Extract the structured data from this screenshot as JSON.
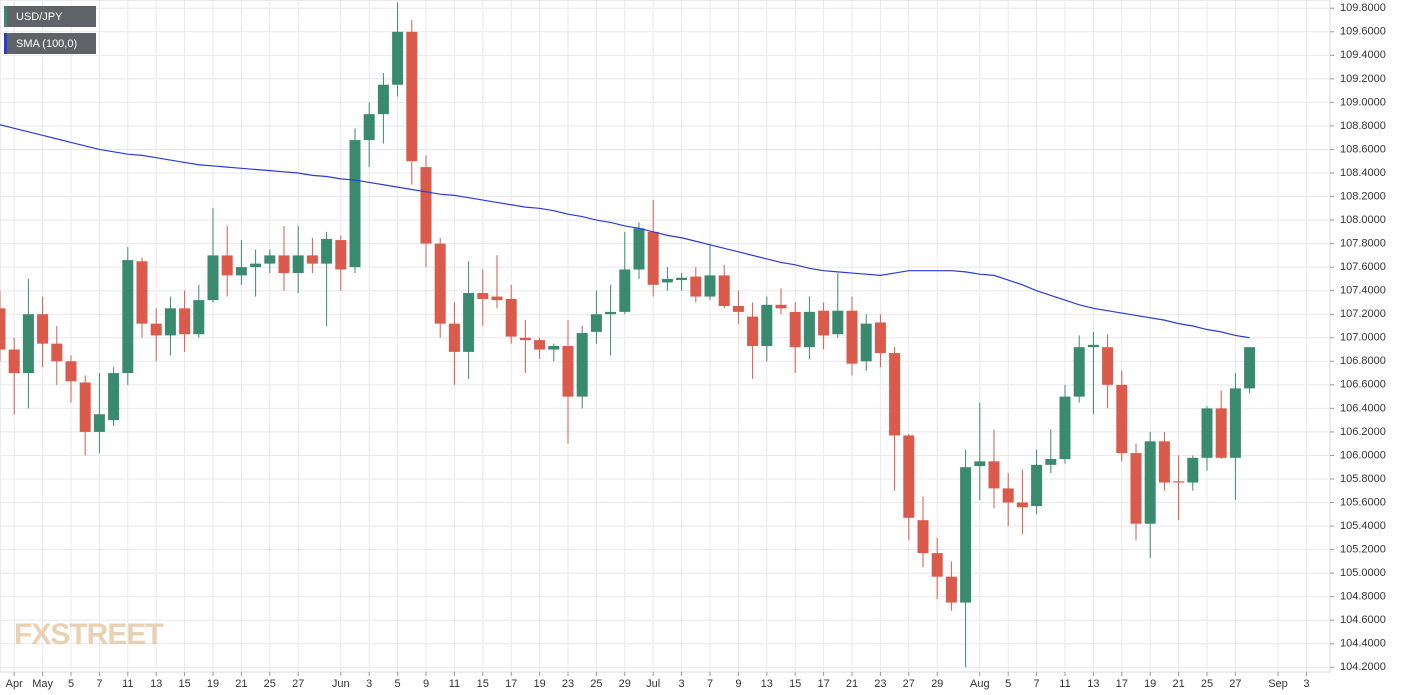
{
  "chart_data": {
    "type": "candlestick",
    "watermark": "FXSTREET",
    "categories": [
      null,
      "Apr",
      null,
      "May",
      null,
      "5",
      null,
      "7",
      null,
      "11",
      null,
      "13",
      null,
      "15",
      null,
      "19",
      null,
      "21",
      null,
      "25",
      null,
      "27",
      null,
      null,
      "Jun",
      null,
      "3",
      null,
      "5",
      null,
      "9",
      null,
      "11",
      null,
      "15",
      null,
      "17",
      null,
      "19",
      null,
      "23",
      null,
      "25",
      null,
      "29",
      null,
      "Jul",
      null,
      "3",
      null,
      "7",
      null,
      "9",
      null,
      "13",
      null,
      "15",
      null,
      "17",
      null,
      "21",
      null,
      "23",
      null,
      "27",
      null,
      "29",
      null,
      null,
      "Aug",
      null,
      "5",
      null,
      "7",
      null,
      "11",
      null,
      "13",
      null,
      "17",
      null,
      "19",
      null,
      "21",
      null,
      "25",
      null,
      "27",
      null,
      null,
      "Sep",
      null,
      "3"
    ],
    "series": [
      {
        "name": "USD/JPY",
        "type": "candlestick",
        "up_color": "#3a8a6f",
        "down_color": "#da5a4b",
        "open": [
          107.25,
          106.9,
          106.7,
          107.2,
          106.95,
          106.8,
          106.62,
          106.2,
          106.3,
          106.7,
          107.65,
          107.12,
          107.02,
          107.25,
          107.03,
          107.32,
          107.7,
          107.53,
          107.6,
          107.63,
          107.7,
          107.55,
          107.7,
          107.63,
          107.83,
          107.6,
          108.68,
          108.9,
          109.15,
          109.6,
          108.45,
          107.8,
          107.12,
          106.88,
          107.38,
          107.35,
          107.33,
          107.0,
          106.98,
          106.9,
          106.93,
          106.5,
          107.05,
          107.2,
          107.22,
          107.58,
          107.9,
          107.47,
          107.49,
          107.52,
          107.35,
          107.53,
          107.27,
          107.18,
          106.93,
          107.28,
          107.22,
          106.92,
          107.23,
          107.03,
          107.23,
          106.8,
          107.13,
          106.87,
          106.17,
          105.45,
          105.17,
          104.97,
          104.75,
          105.91,
          105.95,
          105.72,
          105.6,
          105.57,
          105.92,
          105.97,
          106.5,
          106.92,
          106.92,
          106.6,
          106.02,
          105.42,
          106.12,
          105.78,
          105.77,
          105.98,
          106.4,
          105.98,
          106.57,
          null,
          null,
          null,
          null
        ],
        "high": [
          107.4,
          107.0,
          107.5,
          107.35,
          107.1,
          106.85,
          106.68,
          106.7,
          106.75,
          107.77,
          107.68,
          107.25,
          107.35,
          107.4,
          107.45,
          108.1,
          107.95,
          107.83,
          107.75,
          107.75,
          107.95,
          107.95,
          107.85,
          107.9,
          107.87,
          108.78,
          109.0,
          109.25,
          109.85,
          109.7,
          108.55,
          107.85,
          107.3,
          107.65,
          107.58,
          107.7,
          107.45,
          107.15,
          107.0,
          106.95,
          107.15,
          107.1,
          107.4,
          107.45,
          107.9,
          107.98,
          108.17,
          107.6,
          107.55,
          107.6,
          107.8,
          107.62,
          107.4,
          107.3,
          107.35,
          107.42,
          107.3,
          107.35,
          107.3,
          107.55,
          107.35,
          107.2,
          107.2,
          106.92,
          106.18,
          105.65,
          105.3,
          105.1,
          106.05,
          106.45,
          106.22,
          105.85,
          105.88,
          106.05,
          106.22,
          106.6,
          107.02,
          107.05,
          107.03,
          106.72,
          106.1,
          106.2,
          106.2,
          106.0,
          106.0,
          106.42,
          106.55,
          106.7,
          106.92,
          null,
          null,
          null,
          null
        ],
        "low": [
          106.8,
          106.35,
          106.4,
          106.75,
          106.6,
          106.45,
          106.0,
          106.02,
          106.25,
          106.6,
          107.0,
          106.8,
          106.85,
          106.88,
          107.0,
          107.3,
          107.35,
          107.45,
          107.35,
          107.55,
          107.4,
          107.38,
          107.55,
          107.1,
          107.4,
          107.55,
          108.45,
          108.65,
          109.05,
          108.3,
          107.6,
          107.0,
          106.6,
          106.65,
          107.1,
          107.25,
          106.95,
          106.7,
          106.82,
          106.8,
          106.1,
          106.4,
          106.95,
          106.85,
          107.2,
          107.5,
          107.35,
          107.4,
          107.4,
          107.3,
          107.32,
          107.25,
          107.12,
          106.65,
          106.8,
          107.2,
          106.7,
          106.82,
          106.9,
          107.0,
          106.68,
          106.72,
          106.75,
          105.7,
          105.28,
          105.05,
          104.78,
          104.68,
          104.2,
          105.62,
          105.55,
          105.4,
          105.33,
          105.5,
          105.85,
          105.93,
          106.45,
          106.35,
          106.4,
          105.95,
          105.28,
          105.13,
          105.7,
          105.45,
          105.7,
          105.87,
          105.97,
          105.62,
          106.53,
          null,
          null,
          null,
          null
        ],
        "close": [
          106.9,
          106.7,
          107.2,
          106.95,
          106.8,
          106.63,
          106.2,
          106.35,
          106.7,
          107.66,
          107.12,
          107.02,
          107.25,
          107.03,
          107.32,
          107.7,
          107.53,
          107.6,
          107.63,
          107.7,
          107.55,
          107.7,
          107.63,
          107.84,
          107.58,
          108.68,
          108.9,
          109.15,
          109.6,
          108.5,
          107.8,
          107.12,
          106.88,
          107.38,
          107.33,
          107.32,
          107.01,
          106.98,
          106.9,
          106.93,
          106.5,
          107.04,
          107.2,
          107.22,
          107.58,
          107.93,
          107.45,
          107.5,
          107.51,
          107.35,
          107.53,
          107.27,
          107.22,
          106.93,
          107.28,
          107.25,
          106.92,
          107.22,
          107.02,
          107.23,
          106.78,
          107.12,
          106.87,
          106.17,
          105.47,
          105.17,
          104.97,
          104.75,
          105.9,
          105.95,
          105.72,
          105.6,
          105.56,
          105.92,
          105.97,
          106.5,
          106.92,
          106.94,
          106.6,
          106.02,
          105.42,
          106.12,
          105.77,
          105.77,
          105.98,
          106.4,
          105.98,
          106.57,
          106.92,
          null,
          null,
          null,
          null
        ]
      },
      {
        "name": "SMA (100,0)",
        "type": "line",
        "color": "#2b3bd8",
        "values": [
          108.81,
          108.78,
          108.75,
          108.72,
          108.69,
          108.66,
          108.63,
          108.6,
          108.58,
          108.56,
          108.55,
          108.53,
          108.51,
          108.49,
          108.47,
          108.46,
          108.45,
          108.44,
          108.43,
          108.42,
          108.41,
          108.4,
          108.38,
          108.37,
          108.35,
          108.34,
          108.32,
          108.3,
          108.28,
          108.26,
          108.24,
          108.22,
          108.21,
          108.19,
          108.17,
          108.15,
          108.13,
          108.11,
          108.1,
          108.08,
          108.05,
          108.03,
          108.0,
          107.98,
          107.95,
          107.93,
          107.9,
          107.87,
          107.85,
          107.82,
          107.79,
          107.76,
          107.73,
          107.7,
          107.67,
          107.64,
          107.62,
          107.59,
          107.57,
          107.56,
          107.55,
          107.54,
          107.53,
          107.55,
          107.57,
          107.57,
          107.57,
          107.57,
          107.56,
          107.54,
          107.53,
          107.49,
          107.45,
          107.4,
          107.36,
          107.32,
          107.28,
          107.25,
          107.23,
          107.21,
          107.19,
          107.17,
          107.15,
          107.12,
          107.1,
          107.07,
          107.05,
          107.02,
          107.0,
          null,
          null,
          null,
          null
        ]
      }
    ],
    "ylim": [
      104.16,
      109.87
    ],
    "yticks": [
      {
        "value": 104.2,
        "label": "104.2000"
      },
      {
        "value": 104.4,
        "label": "104.4000"
      },
      {
        "value": 104.6,
        "label": "104.6000"
      },
      {
        "value": 104.8,
        "label": "104.8000"
      },
      {
        "value": 105.0,
        "label": "105.0000"
      },
      {
        "value": 105.2,
        "label": "105.2000"
      },
      {
        "value": 105.4,
        "label": "105.4000"
      },
      {
        "value": 105.6,
        "label": "105.6000"
      },
      {
        "value": 105.8,
        "label": "105.8000"
      },
      {
        "value": 106.0,
        "label": "106.0000"
      },
      {
        "value": 106.2,
        "label": "106.2000"
      },
      {
        "value": 106.4,
        "label": "106.4000"
      },
      {
        "value": 106.6,
        "label": "106.6000"
      },
      {
        "value": 106.8,
        "label": "106.8000"
      },
      {
        "value": 107.0,
        "label": "107.0000"
      },
      {
        "value": 107.2,
        "label": "107.2000"
      },
      {
        "value": 107.4,
        "label": "107.4000"
      },
      {
        "value": 107.6,
        "label": "107.6000"
      },
      {
        "value": 107.8,
        "label": "107.8000"
      },
      {
        "value": 108.0,
        "label": "108.0000"
      },
      {
        "value": 108.2,
        "label": "108.2000"
      },
      {
        "value": 108.4,
        "label": "108.4000"
      },
      {
        "value": 108.6,
        "label": "108.6000"
      },
      {
        "value": 108.8,
        "label": "108.8000"
      },
      {
        "value": 109.0,
        "label": "109.0000"
      },
      {
        "value": 109.2,
        "label": "109.2000"
      },
      {
        "value": 109.4,
        "label": "109.4000"
      },
      {
        "value": 109.6,
        "label": "109.6000"
      },
      {
        "value": 109.8,
        "label": "109.8000"
      }
    ],
    "grid": true,
    "legend": "top-left"
  }
}
